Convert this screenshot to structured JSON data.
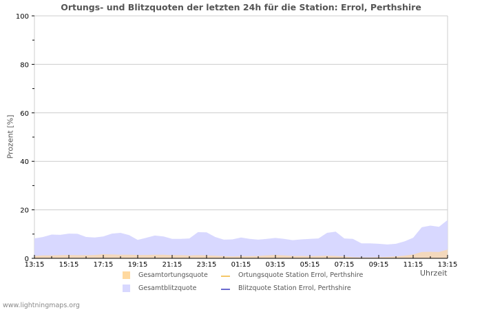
{
  "header": {
    "title": "Ortungs- und Blitzquoten der letzten 24h für die Station: Errol, Perthshire"
  },
  "footer": {
    "site": "www.lightningmaps.org"
  },
  "axes": {
    "xlabel": "Uhrzeit",
    "ylabel": "Prozent   [%]"
  },
  "legend": {
    "items": [
      {
        "label": "Gesamtortungsquote",
        "color": "#ffd9a0",
        "type": "area"
      },
      {
        "label": "Ortungsquote Station Errol, Perthshire",
        "color": "#f5c767",
        "type": "line"
      },
      {
        "label": "Gesamtblitzquote",
        "color": "#d8d8ff",
        "type": "area"
      },
      {
        "label": "Blitzquote Station Errol, Perthshire",
        "color": "#6a6acf",
        "type": "line"
      }
    ]
  },
  "chart_data": {
    "type": "area",
    "title": "Ortungs- und Blitzquoten der letzten 24h für die Station: Errol, Perthshire",
    "xlabel": "Uhrzeit",
    "ylabel": "Prozent [%]",
    "ylim": [
      0,
      100
    ],
    "yticks": [
      0,
      20,
      40,
      60,
      80,
      100
    ],
    "xticks": [
      "13:15",
      "15:15",
      "17:15",
      "19:15",
      "21:15",
      "23:15",
      "01:15",
      "03:15",
      "05:15",
      "07:15",
      "09:15",
      "11:15",
      "13:15"
    ],
    "grid": true,
    "legend_position": "bottom",
    "x": [
      "13:15",
      "13:45",
      "14:15",
      "14:45",
      "15:15",
      "15:45",
      "16:15",
      "16:45",
      "17:15",
      "17:45",
      "18:15",
      "18:45",
      "19:15",
      "19:45",
      "20:15",
      "20:45",
      "21:15",
      "21:45",
      "22:15",
      "22:45",
      "23:15",
      "23:45",
      "00:15",
      "00:45",
      "01:15",
      "01:45",
      "02:15",
      "02:45",
      "03:15",
      "03:45",
      "04:15",
      "04:45",
      "05:15",
      "05:45",
      "06:15",
      "06:45",
      "07:15",
      "07:45",
      "08:15",
      "08:45",
      "09:15",
      "09:45",
      "10:15",
      "10:45",
      "11:15",
      "11:45",
      "12:15",
      "12:45",
      "13:15"
    ],
    "series": [
      {
        "name": "Gesamtblitzquote",
        "values": [
          8.2,
          8.8,
          9.8,
          9.7,
          10.2,
          10.1,
          8.8,
          8.6,
          9.0,
          10.2,
          10.5,
          9.6,
          7.6,
          8.5,
          9.4,
          9.0,
          8.0,
          8.0,
          8.2,
          10.8,
          10.7,
          8.8,
          7.7,
          7.8,
          8.6,
          8.0,
          7.7,
          8.0,
          8.4,
          8.0,
          7.5,
          7.8,
          8.0,
          8.2,
          10.5,
          11.0,
          8.2,
          8.0,
          6.2,
          6.2,
          6.0,
          5.7,
          6.0,
          7.0,
          8.5,
          12.8,
          13.5,
          13.0,
          15.8
        ]
      },
      {
        "name": "Gesamtortungsquote",
        "values": [
          1.0,
          1.2,
          1.2,
          1.3,
          1.4,
          1.3,
          1.3,
          1.4,
          1.7,
          1.6,
          1.5,
          1.5,
          1.4,
          1.4,
          1.5,
          1.5,
          1.3,
          1.3,
          1.2,
          1.3,
          1.2,
          1.1,
          0.9,
          0.8,
          0.9,
          0.9,
          1.0,
          1.2,
          1.4,
          1.2,
          1.0,
          1.0,
          0.9,
          1.0,
          1.1,
          1.0,
          0.8,
          0.5,
          0.4,
          0.4,
          0.5,
          0.6,
          0.8,
          1.1,
          1.6,
          2.6,
          2.7,
          2.6,
          3.6
        ]
      },
      {
        "name": "Ortungsquote Station Errol, Perthshire",
        "values": []
      },
      {
        "name": "Blitzquote Station Errol, Perthshire",
        "values": []
      }
    ]
  }
}
